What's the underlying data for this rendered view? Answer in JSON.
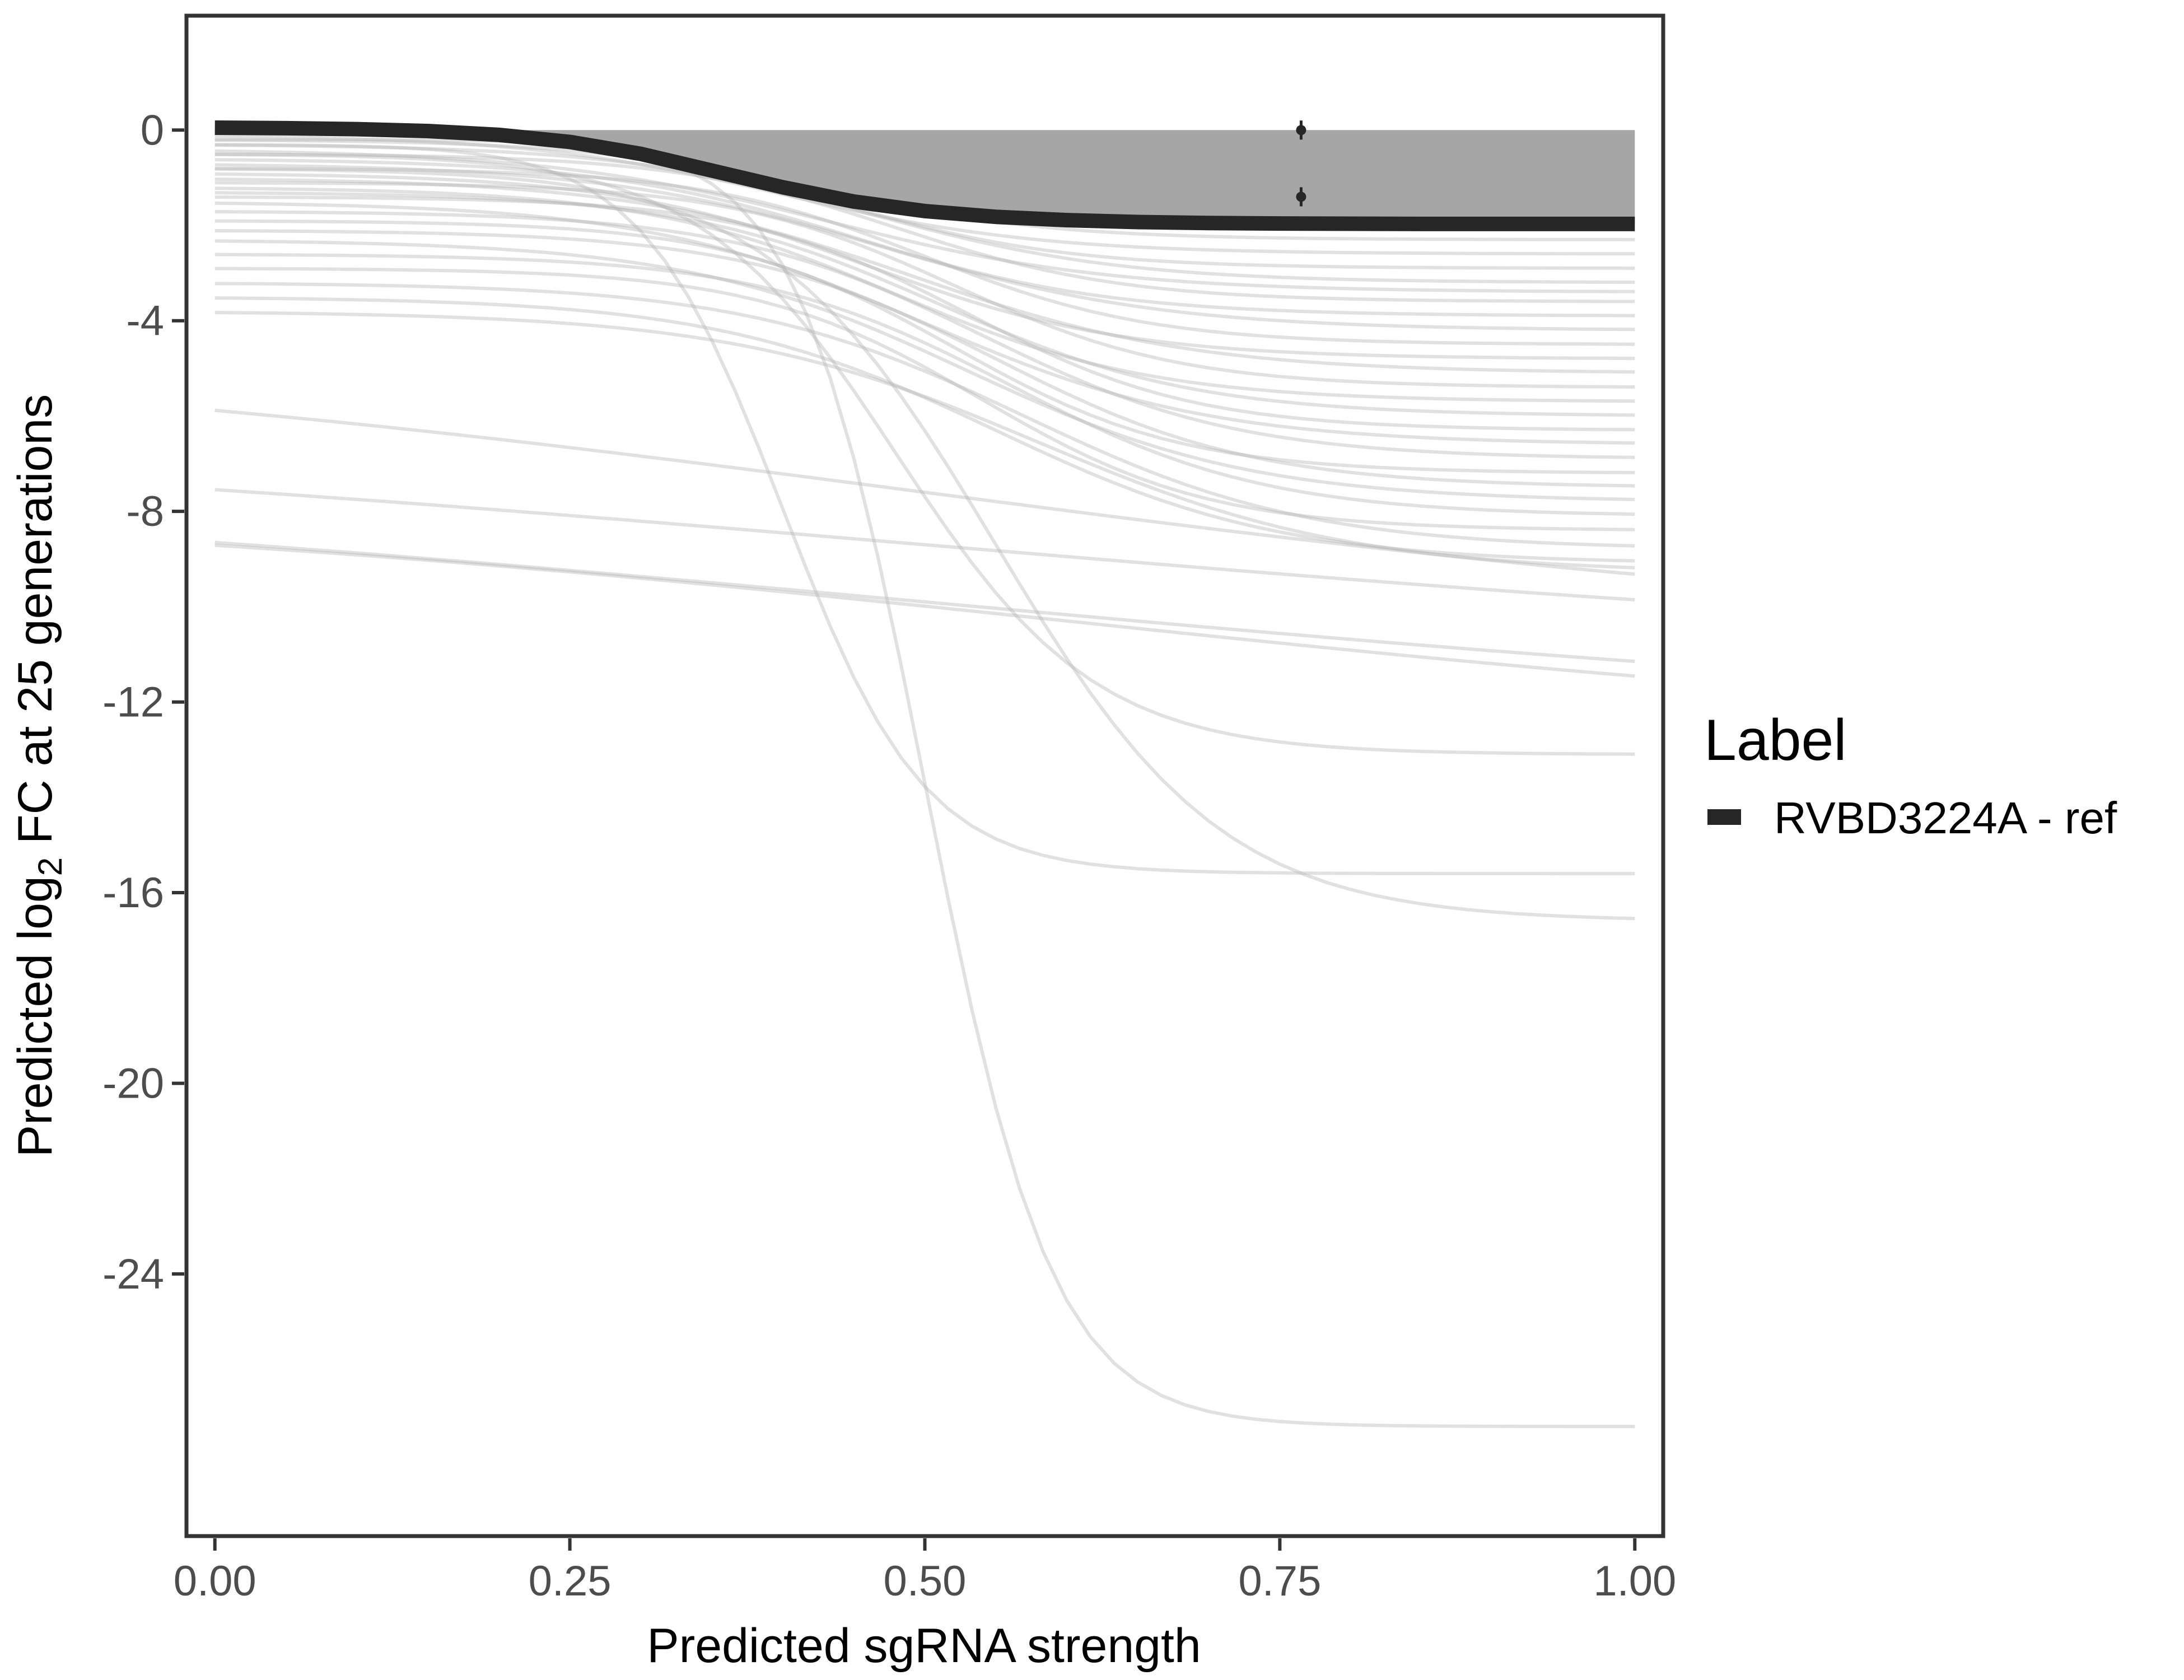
{
  "chart_data": {
    "type": "line",
    "title": "",
    "xlabel": "Predicted sgRNA strength",
    "ylabel_parts": {
      "prefix": "Predicted  log",
      "subscript": "2",
      "suffix": " FC at 25 generations"
    },
    "xlim": [
      -0.02,
      1.02
    ],
    "ylim": [
      -29.5,
      2.4
    ],
    "x_ticks": [
      0,
      0.25,
      0.5,
      0.75,
      1
    ],
    "x_tick_labels": [
      "0.00",
      "0.25",
      "0.50",
      "0.75",
      "1.00"
    ],
    "y_ticks": [
      0,
      -4,
      -8,
      -12,
      -16,
      -20,
      -24
    ],
    "y_tick_labels": [
      "0",
      "-4",
      "-8",
      "-12",
      "-16",
      "-20",
      "-24"
    ],
    "grid": false,
    "legend": {
      "title": "Label",
      "position": "right",
      "entries": [
        {
          "label": "RVBD3224A - ref",
          "color": "#262626"
        }
      ]
    },
    "highlight_series": {
      "name": "RVBD3224A - ref",
      "color": "#262626",
      "x": [
        0,
        0.05,
        0.1,
        0.15,
        0.2,
        0.25,
        0.3,
        0.35,
        0.4,
        0.45,
        0.5,
        0.55,
        0.6,
        0.65,
        0.7,
        0.75,
        0.8,
        0.85,
        0.9,
        0.95,
        1.0
      ],
      "y": [
        0.05,
        0.04,
        0.02,
        -0.02,
        -0.1,
        -0.25,
        -0.5,
        -0.85,
        -1.2,
        -1.5,
        -1.7,
        -1.82,
        -1.89,
        -1.93,
        -1.95,
        -1.96,
        -1.965,
        -1.97,
        -1.97,
        -1.97,
        -1.97
      ]
    },
    "points": [
      {
        "x": 0.765,
        "y": 0.0,
        "err": 0.2
      },
      {
        "x": 0.765,
        "y": -1.4,
        "err": 0.2
      }
    ],
    "background_curves": [
      {
        "y0": 0.0,
        "y1": -2.3,
        "mid": 0.42,
        "w": 0.08
      },
      {
        "y0": -0.1,
        "y1": -2.6,
        "mid": 0.4,
        "w": 0.09
      },
      {
        "y0": -0.2,
        "y1": -2.9,
        "mid": 0.44,
        "w": 0.08
      },
      {
        "y0": -0.3,
        "y1": -3.2,
        "mid": 0.46,
        "w": 0.09
      },
      {
        "y0": -0.4,
        "y1": -3.4,
        "mid": 0.43,
        "w": 0.1
      },
      {
        "y0": -0.5,
        "y1": -3.6,
        "mid": 0.48,
        "w": 0.08
      },
      {
        "y0": -0.6,
        "y1": -3.9,
        "mid": 0.45,
        "w": 0.09
      },
      {
        "y0": -0.7,
        "y1": -4.2,
        "mid": 0.47,
        "w": 0.1
      },
      {
        "y0": -0.8,
        "y1": -4.5,
        "mid": 0.5,
        "w": 0.08
      },
      {
        "y0": -0.9,
        "y1": -4.8,
        "mid": 0.46,
        "w": 0.09
      },
      {
        "y0": -1.0,
        "y1": -5.1,
        "mid": 0.49,
        "w": 0.1
      },
      {
        "y0": -1.1,
        "y1": -5.4,
        "mid": 0.52,
        "w": 0.08
      },
      {
        "y0": -1.2,
        "y1": -5.7,
        "mid": 0.48,
        "w": 0.09
      },
      {
        "y0": -1.3,
        "y1": -6.0,
        "mid": 0.51,
        "w": 0.09
      },
      {
        "y0": -1.4,
        "y1": -6.3,
        "mid": 0.53,
        "w": 0.08
      },
      {
        "y0": -1.5,
        "y1": -6.6,
        "mid": 0.5,
        "w": 0.1
      },
      {
        "y0": -1.7,
        "y1": -6.9,
        "mid": 0.54,
        "w": 0.09
      },
      {
        "y0": -1.9,
        "y1": -7.2,
        "mid": 0.52,
        "w": 0.08
      },
      {
        "y0": -2.1,
        "y1": -7.5,
        "mid": 0.55,
        "w": 0.09
      },
      {
        "y0": -2.3,
        "y1": -7.8,
        "mid": 0.53,
        "w": 0.1
      },
      {
        "y0": -2.6,
        "y1": -8.1,
        "mid": 0.56,
        "w": 0.09
      },
      {
        "y0": -2.9,
        "y1": -8.4,
        "mid": 0.54,
        "w": 0.08
      },
      {
        "y0": -3.2,
        "y1": -8.8,
        "mid": 0.57,
        "w": 0.1
      },
      {
        "y0": -3.5,
        "y1": -9.1,
        "mid": 0.55,
        "w": 0.1
      },
      {
        "y0": -3.8,
        "y1": -9.3,
        "mid": 0.58,
        "w": 0.11
      },
      {
        "y0": -4.5,
        "y1": -10.7,
        "mid": 0.5,
        "w": 0.4
      },
      {
        "y0": -6.2,
        "y1": -11.2,
        "mid": 0.5,
        "w": 0.5
      },
      {
        "y0": -7.2,
        "y1": -12.6,
        "mid": 0.5,
        "w": 0.5
      },
      {
        "y0": -7.8,
        "y1": -12.8,
        "mid": 0.6,
        "w": 0.4
      },
      {
        "y0": -0.5,
        "y1": -13.1,
        "mid": 0.48,
        "w": 0.07
      },
      {
        "y0": -0.3,
        "y1": -15.6,
        "mid": 0.4,
        "w": 0.05
      },
      {
        "y0": -0.8,
        "y1": -16.6,
        "mid": 0.55,
        "w": 0.08
      },
      {
        "y0": -0.2,
        "y1": -27.2,
        "mid": 0.5,
        "w": 0.045
      }
    ]
  }
}
